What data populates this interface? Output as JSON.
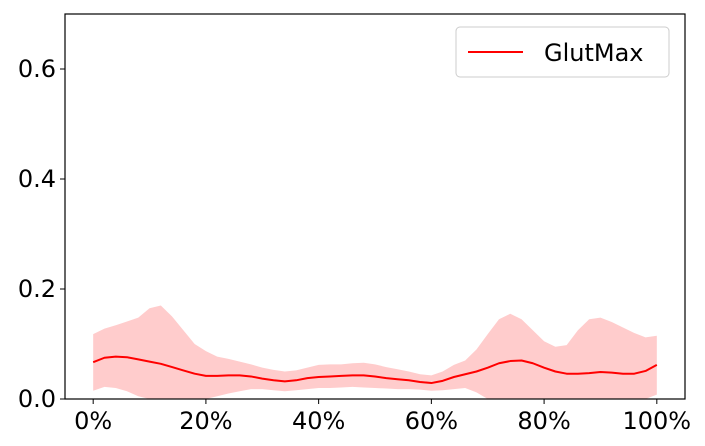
{
  "chart_data": {
    "type": "line",
    "title": "",
    "xlabel": "",
    "ylabel": "",
    "xlim": [
      -5,
      105
    ],
    "ylim": [
      0,
      0.7
    ],
    "x_ticks": [
      0,
      20,
      40,
      60,
      80,
      100
    ],
    "x_tick_labels": [
      "0%",
      "20%",
      "40%",
      "60%",
      "80%",
      "100%"
    ],
    "y_ticks": [
      0.0,
      0.2,
      0.4,
      0.6
    ],
    "y_tick_labels": [
      "0.0",
      "0.2",
      "0.4",
      "0.6"
    ],
    "grid": false,
    "legend_position": "top-right",
    "series": [
      {
        "name": "GlutMax",
        "color": "#ff0000",
        "band_color": "#ffcccc",
        "x": [
          0,
          2,
          4,
          6,
          8,
          10,
          12,
          14,
          16,
          18,
          20,
          22,
          24,
          26,
          28,
          30,
          32,
          34,
          36,
          38,
          40,
          42,
          44,
          46,
          48,
          50,
          52,
          54,
          56,
          58,
          60,
          62,
          64,
          66,
          68,
          70,
          72,
          74,
          76,
          78,
          80,
          82,
          84,
          86,
          88,
          90,
          92,
          94,
          96,
          98,
          100
        ],
        "mean": [
          0.067,
          0.075,
          0.077,
          0.076,
          0.072,
          0.068,
          0.064,
          0.058,
          0.052,
          0.046,
          0.042,
          0.042,
          0.043,
          0.043,
          0.041,
          0.037,
          0.034,
          0.032,
          0.034,
          0.038,
          0.04,
          0.041,
          0.042,
          0.043,
          0.043,
          0.041,
          0.038,
          0.036,
          0.034,
          0.031,
          0.029,
          0.033,
          0.04,
          0.045,
          0.05,
          0.057,
          0.065,
          0.069,
          0.07,
          0.065,
          0.057,
          0.05,
          0.046,
          0.046,
          0.047,
          0.049,
          0.048,
          0.046,
          0.046,
          0.051,
          0.062
        ],
        "upper": [
          0.118,
          0.128,
          0.134,
          0.141,
          0.148,
          0.165,
          0.17,
          0.15,
          0.125,
          0.1,
          0.087,
          0.077,
          0.073,
          0.068,
          0.063,
          0.057,
          0.053,
          0.05,
          0.052,
          0.057,
          0.062,
          0.063,
          0.063,
          0.065,
          0.066,
          0.063,
          0.058,
          0.054,
          0.05,
          0.045,
          0.043,
          0.05,
          0.062,
          0.07,
          0.09,
          0.118,
          0.145,
          0.155,
          0.145,
          0.125,
          0.105,
          0.095,
          0.098,
          0.125,
          0.145,
          0.148,
          0.14,
          0.13,
          0.12,
          0.112,
          0.115
        ],
        "lower": [
          0.015,
          0.022,
          0.02,
          0.014,
          0.005,
          0.0,
          0.0,
          0.0,
          0.0,
          0.0,
          0.0,
          0.005,
          0.01,
          0.014,
          0.018,
          0.018,
          0.016,
          0.014,
          0.016,
          0.018,
          0.02,
          0.02,
          0.021,
          0.022,
          0.021,
          0.02,
          0.019,
          0.018,
          0.018,
          0.017,
          0.015,
          0.016,
          0.018,
          0.02,
          0.012,
          0.0,
          0.0,
          0.0,
          0.0,
          0.0,
          0.0,
          0.0,
          0.0,
          0.0,
          0.0,
          0.0,
          0.0,
          0.0,
          0.0,
          0.0,
          0.008
        ]
      }
    ]
  }
}
